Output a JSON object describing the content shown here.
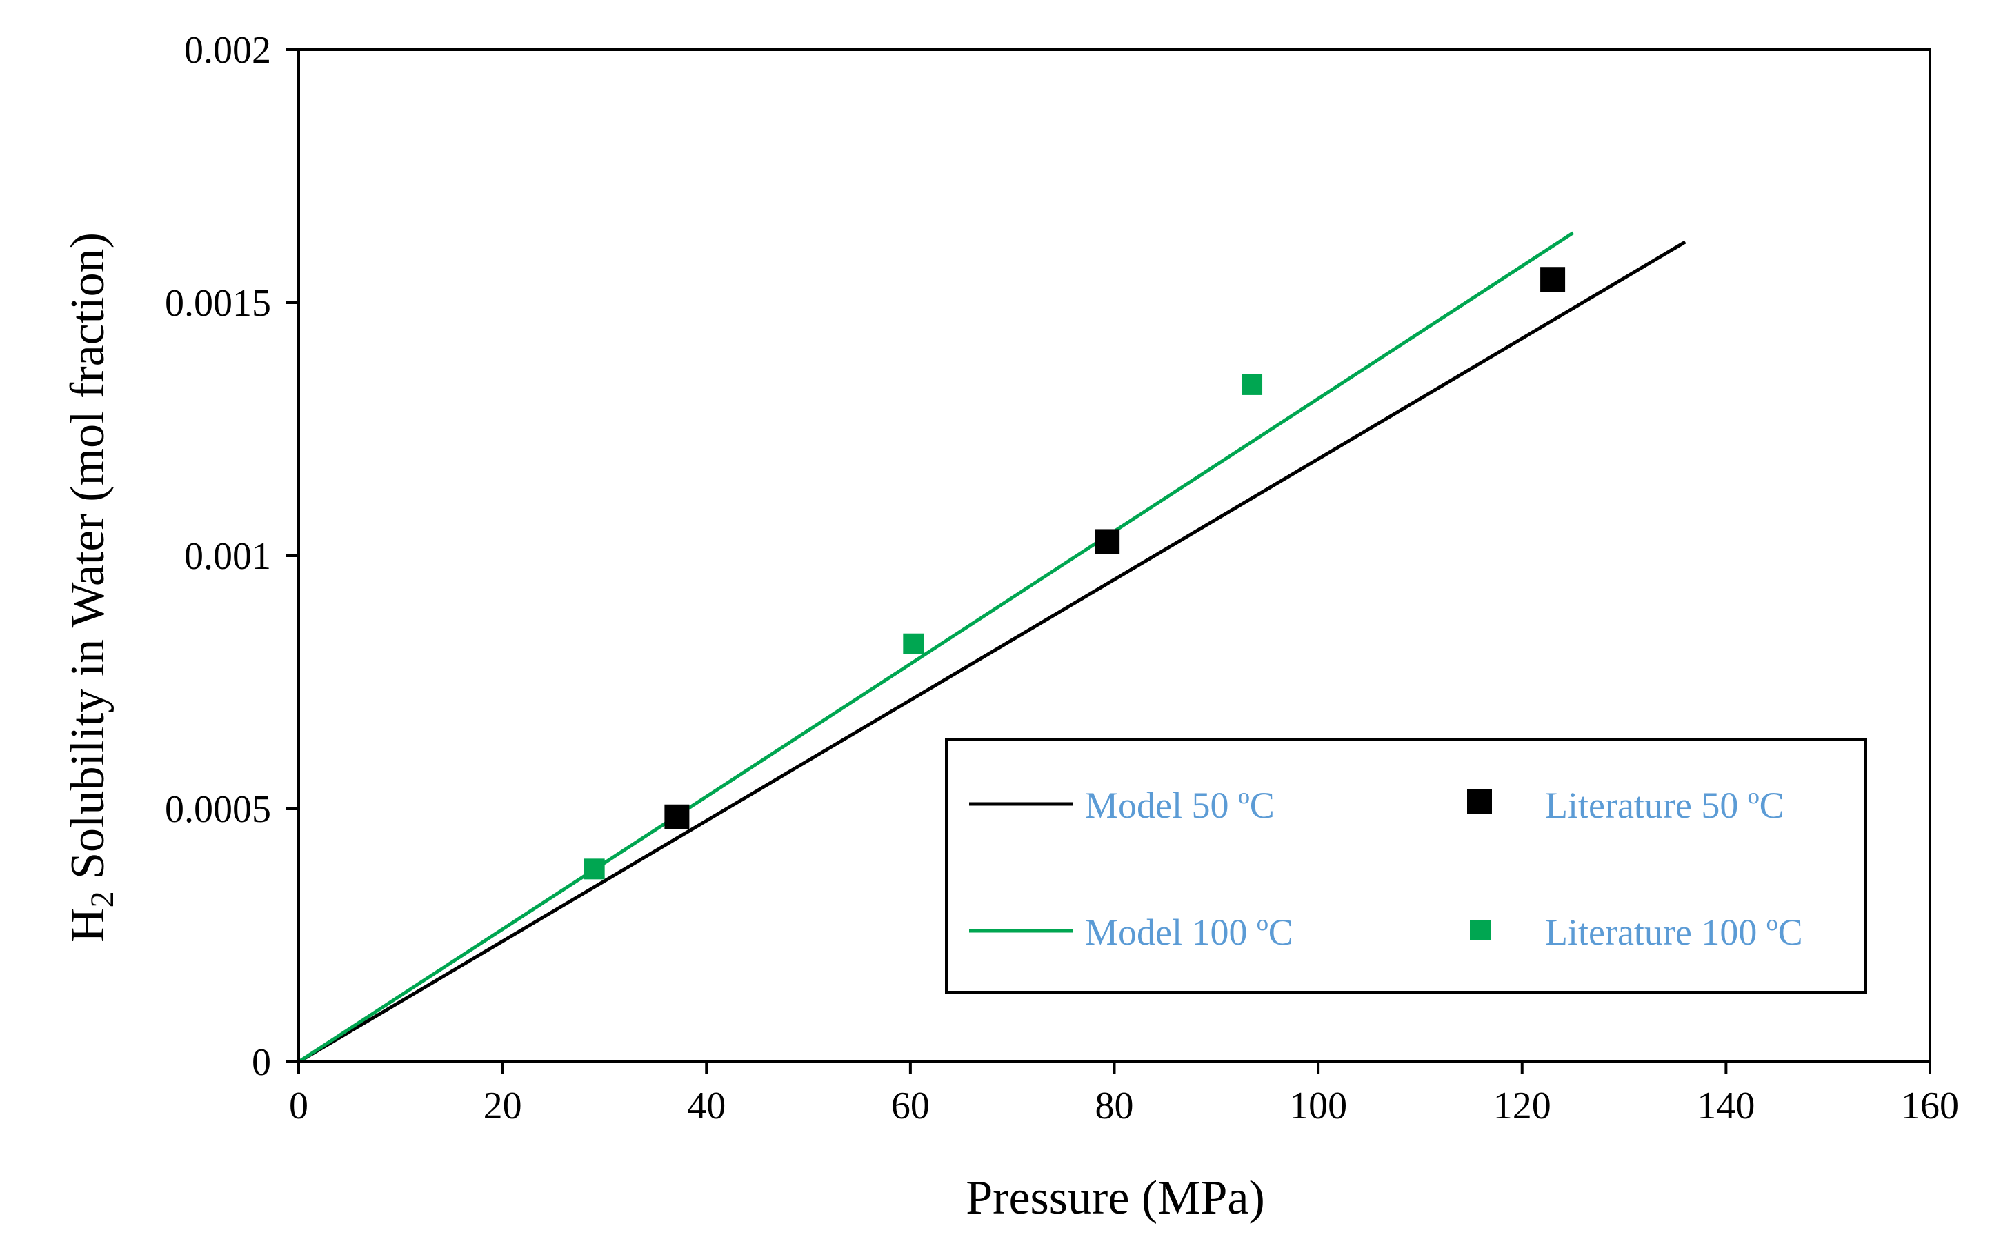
{
  "chart_data": {
    "type": "scatter",
    "title": "",
    "xlabel": "Pressure (MPa)",
    "ylabel_prefix": "H",
    "ylabel_subscript": "2",
    "ylabel_rest": " Solubility in Water (mol fraction)",
    "xlim": [
      0,
      160
    ],
    "ylim": [
      0,
      0.002
    ],
    "xticks": [
      0,
      20,
      40,
      60,
      80,
      100,
      120,
      140,
      160
    ],
    "yticks": [
      0,
      0.0005,
      0.001,
      0.0015,
      0.002
    ],
    "xtick_labels": [
      "0",
      "20",
      "40",
      "60",
      "80",
      "100",
      "120",
      "140",
      "160"
    ],
    "ytick_labels": [
      "0",
      "0.0005",
      "0.001",
      "0.0015",
      "0.002"
    ],
    "grid": false,
    "legend_position": "bottom-right",
    "series": [
      {
        "name": "Model 50 ºC",
        "kind": "line",
        "color": "#000000",
        "x": [
          0,
          136
        ],
        "y": [
          0,
          0.00162
        ]
      },
      {
        "name": "Model 100 ºC",
        "kind": "line",
        "color": "#00A651",
        "x": [
          0,
          125
        ],
        "y": [
          0,
          0.001638
        ]
      },
      {
        "name": "Literature 50 ºC",
        "kind": "scatter",
        "color": "#000000",
        "x": [
          37.1,
          79.3,
          123.0
        ],
        "y": [
          0.000484,
          0.001028,
          0.001546
        ]
      },
      {
        "name": "Literature 100 ºC",
        "kind": "scatter",
        "color": "#00A651",
        "x": [
          29.0,
          60.3,
          93.5
        ],
        "y": [
          0.000381,
          0.000826,
          0.001338
        ]
      }
    ]
  }
}
